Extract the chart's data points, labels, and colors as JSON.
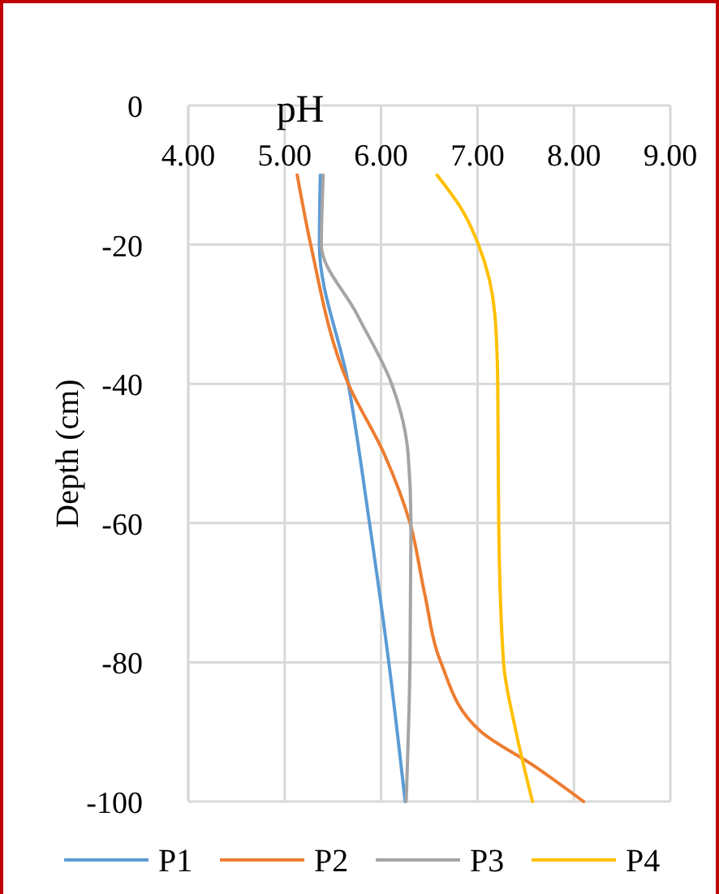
{
  "chart_data": {
    "type": "line",
    "xlabel": "pH",
    "ylabel": "Depth (cm)",
    "xlim": [
      4,
      9
    ],
    "xticks": [
      {
        "value": 4,
        "label": "4.00"
      },
      {
        "value": 5,
        "label": "5.00"
      },
      {
        "value": 6,
        "label": "6.00"
      },
      {
        "value": 7,
        "label": "7.00"
      },
      {
        "value": 8,
        "label": "8.00"
      },
      {
        "value": 9,
        "label": "9.00"
      }
    ],
    "ylim": [
      -100,
      0
    ],
    "yticks": [
      0,
      -20,
      -40,
      -60,
      -80,
      -100
    ],
    "grid": true,
    "legend": "bottom",
    "marker": "none",
    "line_style": "solid",
    "series": [
      {
        "name": "P1",
        "color": "#5b9bd5",
        "x": [
          5.37,
          5.36,
          5.66,
          5.88,
          6.08,
          6.25
        ],
        "values": [
          -10,
          -20,
          -40,
          -60,
          -80,
          -100
        ]
      },
      {
        "name": "P2",
        "color": "#ed7d31",
        "x": [
          5.13,
          5.27,
          5.66,
          6.03,
          6.3,
          6.45,
          6.62,
          7.04,
          7.6,
          8.1
        ],
        "values": [
          -10,
          -20,
          -40,
          -50,
          -60,
          -70,
          -80,
          -90,
          -95,
          -100
        ]
      },
      {
        "name": "P3",
        "color": "#a5a5a5",
        "x": [
          5.4,
          5.38,
          5.75,
          6.11,
          6.28,
          6.31,
          6.3,
          6.26
        ],
        "values": [
          -10,
          -20,
          -30,
          -40,
          -50,
          -60,
          -80,
          -100
        ]
      },
      {
        "name": "P4",
        "color": "#ffc000",
        "x": [
          6.58,
          6.84,
          7.01,
          7.18,
          7.21,
          7.22,
          7.27,
          7.4,
          7.57
        ],
        "values": [
          -10,
          -15,
          -20,
          -30,
          -40,
          -60,
          -80,
          -90,
          -100
        ]
      }
    ]
  }
}
